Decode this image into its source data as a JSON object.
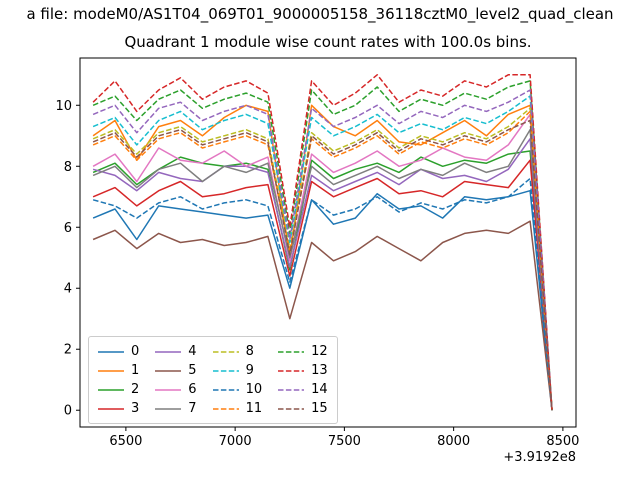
{
  "figure": {
    "suptitle": "a file: modeM0/AS1T04_069T01_9000005158_36118cztM0_level2_quad_clean",
    "title": "Quadrant 1 module wise count rates with 100.0s bins."
  },
  "chart_data": {
    "type": "line",
    "title": "Quadrant 1 module wise count rates with 100.0s bins.",
    "xlabel": "",
    "ylabel": "",
    "grid": false,
    "legend_position": "lower left",
    "x_offset_text": "+3.9192e8",
    "xlim": [
      6290,
      8560
    ],
    "ylim": [
      -0.55,
      11.55
    ],
    "x_ticks": [
      6500,
      7000,
      7500,
      8000,
      8500
    ],
    "y_ticks": [
      0,
      2,
      4,
      6,
      8,
      10
    ],
    "x": [
      6350,
      6450,
      6550,
      6650,
      6750,
      6850,
      6950,
      7050,
      7150,
      7250,
      7350,
      7450,
      7550,
      7650,
      7750,
      7850,
      7950,
      8050,
      8150,
      8250,
      8350,
      8450
    ],
    "series": [
      {
        "name": "0",
        "color": "#1f77b4",
        "dashed": false,
        "values": [
          6.3,
          6.6,
          5.6,
          6.7,
          6.6,
          6.5,
          6.4,
          6.3,
          6.4,
          4.0,
          6.9,
          6.1,
          6.3,
          7.1,
          6.6,
          6.7,
          6.3,
          7.0,
          6.9,
          7.0,
          7.2,
          0.0
        ]
      },
      {
        "name": "1",
        "color": "#ff7f0e",
        "dashed": false,
        "values": [
          9.0,
          9.5,
          8.2,
          9.3,
          9.5,
          9.0,
          9.6,
          10.0,
          9.8,
          5.0,
          10.0,
          9.3,
          9.0,
          9.5,
          8.8,
          8.7,
          9.1,
          9.5,
          9.0,
          9.7,
          10.0,
          0.0
        ]
      },
      {
        "name": "2",
        "color": "#2ca02c",
        "dashed": false,
        "values": [
          7.8,
          8.1,
          7.4,
          7.9,
          8.3,
          8.1,
          8.0,
          8.1,
          7.9,
          4.6,
          8.2,
          7.6,
          7.9,
          8.1,
          7.8,
          8.3,
          8.0,
          8.2,
          8.1,
          8.4,
          8.5,
          0.0
        ]
      },
      {
        "name": "3",
        "color": "#d62728",
        "dashed": false,
        "values": [
          7.0,
          7.3,
          6.7,
          7.2,
          7.5,
          7.0,
          7.1,
          7.3,
          7.4,
          4.4,
          7.5,
          7.0,
          7.3,
          7.6,
          7.1,
          7.2,
          7.0,
          7.5,
          7.4,
          7.3,
          8.2,
          0.0
        ]
      },
      {
        "name": "4",
        "color": "#9467bd",
        "dashed": false,
        "values": [
          7.9,
          7.7,
          7.2,
          7.8,
          7.6,
          7.5,
          8.0,
          8.0,
          7.8,
          4.7,
          7.7,
          7.2,
          7.5,
          7.8,
          7.4,
          7.9,
          7.6,
          7.7,
          7.5,
          7.9,
          8.9,
          0.0
        ]
      },
      {
        "name": "5",
        "color": "#8c564b",
        "dashed": false,
        "values": [
          5.6,
          5.9,
          5.3,
          5.8,
          5.5,
          5.6,
          5.4,
          5.5,
          5.7,
          3.0,
          5.5,
          4.9,
          5.2,
          5.7,
          5.3,
          4.9,
          5.5,
          5.8,
          5.9,
          5.8,
          6.2,
          0.0
        ]
      },
      {
        "name": "6",
        "color": "#e377c2",
        "dashed": false,
        "values": [
          8.0,
          8.4,
          7.5,
          8.6,
          8.2,
          8.1,
          8.5,
          8.0,
          8.3,
          4.9,
          8.4,
          7.8,
          8.1,
          8.5,
          8.0,
          8.2,
          8.6,
          8.3,
          8.2,
          8.7,
          9.7,
          0.0
        ]
      },
      {
        "name": "7",
        "color": "#7f7f7f",
        "dashed": false,
        "values": [
          7.7,
          8.0,
          7.3,
          7.9,
          8.1,
          7.5,
          8.0,
          7.8,
          8.1,
          5.0,
          8.0,
          7.4,
          7.7,
          8.0,
          7.6,
          7.9,
          7.7,
          8.1,
          7.8,
          8.0,
          9.2,
          0.0
        ]
      },
      {
        "name": "8",
        "color": "#bcbd22",
        "dashed": true,
        "values": [
          8.9,
          9.2,
          8.4,
          9.1,
          9.3,
          8.8,
          9.0,
          9.2,
          8.9,
          5.3,
          9.1,
          8.5,
          8.8,
          9.2,
          8.6,
          9.0,
          8.8,
          9.1,
          8.9,
          9.3,
          9.9,
          0.0
        ]
      },
      {
        "name": "9",
        "color": "#17becf",
        "dashed": true,
        "values": [
          9.3,
          9.6,
          8.7,
          9.5,
          9.8,
          9.2,
          9.5,
          9.7,
          9.4,
          5.5,
          9.6,
          9.0,
          9.3,
          9.7,
          9.1,
          9.4,
          9.2,
          9.6,
          9.4,
          9.8,
          10.3,
          0.0
        ]
      },
      {
        "name": "10",
        "color": "#1f77b4",
        "dashed": true,
        "values": [
          6.9,
          6.7,
          6.3,
          6.8,
          7.0,
          6.6,
          6.8,
          6.9,
          6.7,
          4.2,
          6.9,
          6.4,
          6.6,
          7.0,
          6.5,
          6.8,
          6.6,
          6.9,
          6.8,
          7.0,
          7.6,
          0.0
        ]
      },
      {
        "name": "11",
        "color": "#ff7f0e",
        "dashed": true,
        "values": [
          8.7,
          9.0,
          8.2,
          8.9,
          9.1,
          8.6,
          8.8,
          9.0,
          8.7,
          5.2,
          8.9,
          8.3,
          8.6,
          9.0,
          8.4,
          8.8,
          8.6,
          8.9,
          8.7,
          9.1,
          9.8,
          0.0
        ]
      },
      {
        "name": "12",
        "color": "#2ca02c",
        "dashed": true,
        "values": [
          10.0,
          10.3,
          9.5,
          10.2,
          10.5,
          9.9,
          10.2,
          10.4,
          10.1,
          5.8,
          10.5,
          9.7,
          10.0,
          10.6,
          9.8,
          10.2,
          10.0,
          10.4,
          10.2,
          10.6,
          10.8,
          0.0
        ]
      },
      {
        "name": "13",
        "color": "#d62728",
        "dashed": true,
        "values": [
          10.1,
          10.8,
          9.8,
          10.5,
          10.9,
          10.2,
          10.6,
          10.8,
          10.4,
          6.0,
          10.8,
          10.0,
          10.4,
          11.0,
          10.1,
          10.5,
          10.3,
          10.8,
          10.6,
          11.0,
          11.0,
          0.0
        ]
      },
      {
        "name": "14",
        "color": "#9467bd",
        "dashed": true,
        "values": [
          9.7,
          10.0,
          9.1,
          9.9,
          10.1,
          9.5,
          9.8,
          10.0,
          9.7,
          5.6,
          9.9,
          9.3,
          9.6,
          10.0,
          9.4,
          9.8,
          9.6,
          10.0,
          9.8,
          10.1,
          10.5,
          0.0
        ]
      },
      {
        "name": "15",
        "color": "#8c564b",
        "dashed": true,
        "values": [
          8.8,
          9.1,
          8.3,
          9.0,
          9.2,
          8.7,
          8.9,
          9.1,
          8.8,
          5.1,
          9.0,
          8.4,
          8.7,
          9.1,
          8.5,
          8.9,
          8.7,
          9.0,
          8.8,
          9.2,
          9.5,
          0.0
        ]
      }
    ]
  }
}
